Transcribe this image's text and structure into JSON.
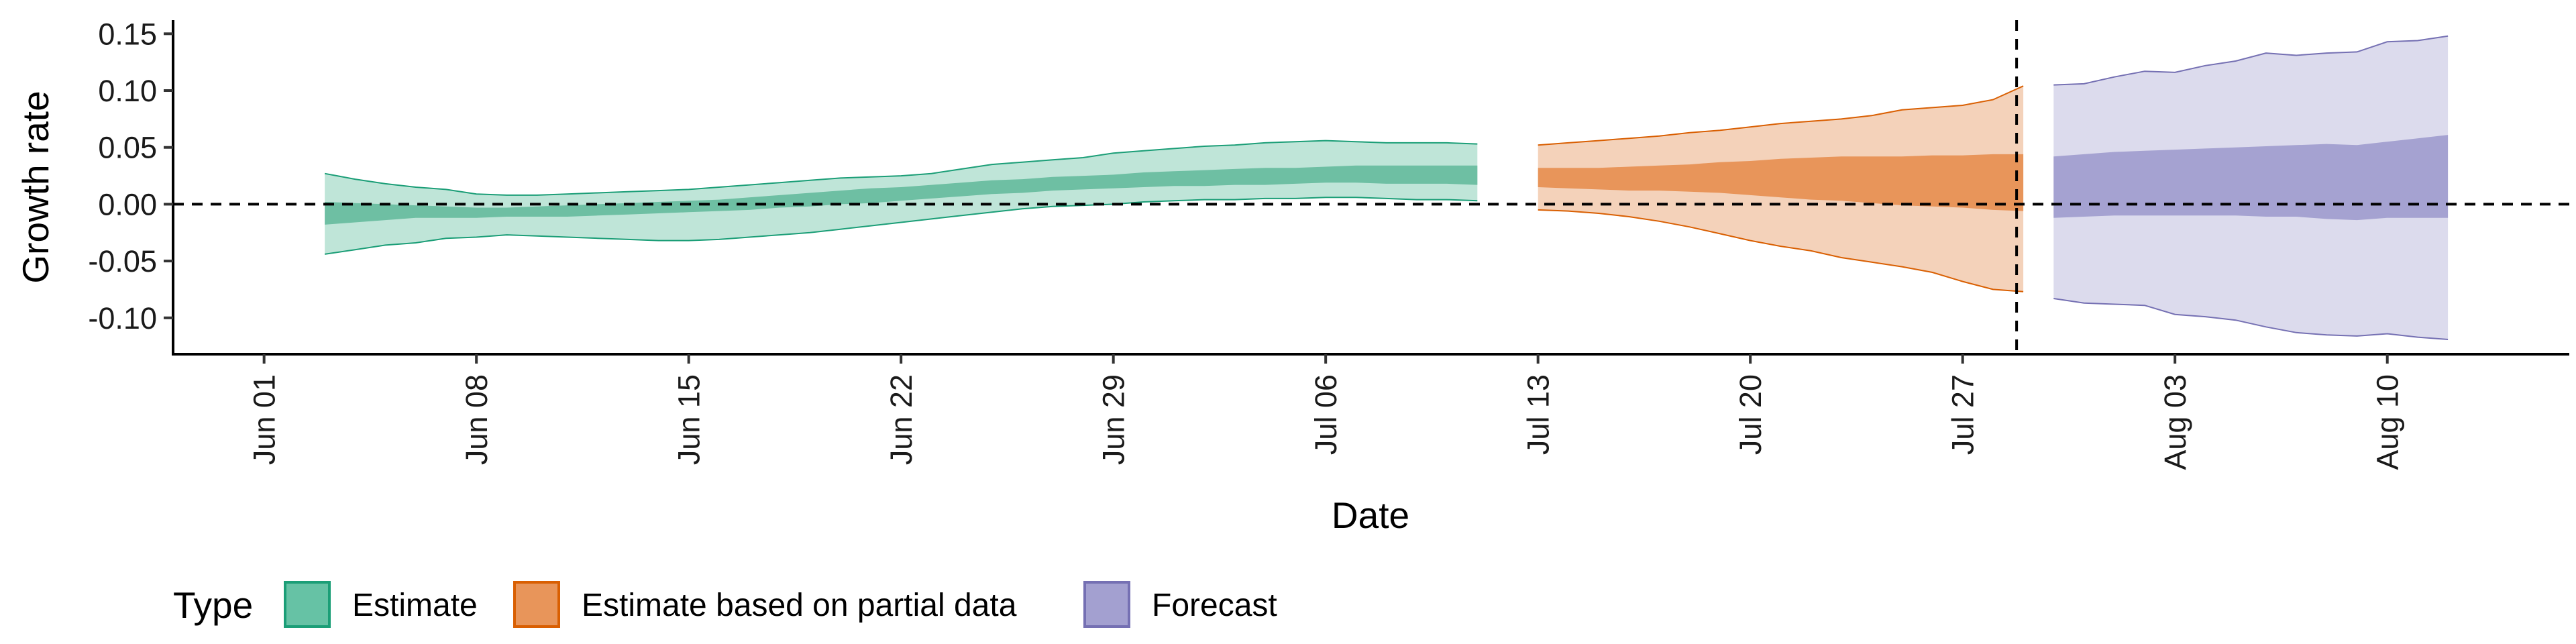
{
  "chart_data": {
    "type": "area",
    "xlabel": "Date",
    "ylabel": "Growth rate",
    "xlim": [
      "2020-05-29",
      "2020-08-16"
    ],
    "ylim": [
      -0.132,
      0.162
    ],
    "yticks": [
      0.15,
      0.1,
      0.05,
      0.0,
      -0.05,
      -0.1
    ],
    "ytick_labels": [
      "0.15",
      "0.10",
      "0.05",
      "0.00",
      "-0.05",
      "-0.10"
    ],
    "xticks": [
      "2020-06-01",
      "2020-06-08",
      "2020-06-15",
      "2020-06-22",
      "2020-06-29",
      "2020-07-06",
      "2020-07-13",
      "2020-07-20",
      "2020-07-27",
      "2020-08-03",
      "2020-08-10"
    ],
    "xtick_labels": [
      "Jun 01",
      "Jun 08",
      "Jun 15",
      "Jun 22",
      "Jun 29",
      "Jul 06",
      "Jul 13",
      "Jul 20",
      "Jul 27",
      "Aug 03",
      "Aug 10"
    ],
    "reference_lines": {
      "horizontal_y": 0,
      "vertical_x": "2020-07-29"
    },
    "grid": false,
    "legend": {
      "title": "Type",
      "position": "bottom-left",
      "entries": [
        {
          "label": "Estimate",
          "fill": "#66c2a5",
          "stroke": "#1b9e77"
        },
        {
          "label": "Estimate based on partial data",
          "fill": "#e8955a",
          "stroke": "#d95f02"
        },
        {
          "label": "Forecast",
          "fill": "#a3a0d0",
          "stroke": "#7570b3"
        }
      ]
    },
    "series": [
      {
        "name": "Estimate",
        "colors": {
          "inner": "#6ebfa3",
          "outer": "#bfe5d8",
          "line": "#1b9e77"
        },
        "x": [
          "2020-06-03",
          "2020-06-04",
          "2020-06-05",
          "2020-06-06",
          "2020-06-07",
          "2020-06-08",
          "2020-06-09",
          "2020-06-10",
          "2020-06-11",
          "2020-06-12",
          "2020-06-13",
          "2020-06-14",
          "2020-06-15",
          "2020-06-16",
          "2020-06-17",
          "2020-06-18",
          "2020-06-19",
          "2020-06-20",
          "2020-06-21",
          "2020-06-22",
          "2020-06-23",
          "2020-06-24",
          "2020-06-25",
          "2020-06-26",
          "2020-06-27",
          "2020-06-28",
          "2020-06-29",
          "2020-06-30",
          "2020-07-01",
          "2020-07-02",
          "2020-07-03",
          "2020-07-04",
          "2020-07-05",
          "2020-07-06",
          "2020-07-07",
          "2020-07-08",
          "2020-07-09",
          "2020-07-10",
          "2020-07-11"
        ],
        "lower_90": [
          -0.044,
          -0.04,
          -0.036,
          -0.034,
          -0.03,
          -0.029,
          -0.027,
          -0.028,
          -0.029,
          -0.03,
          -0.031,
          -0.032,
          -0.032,
          -0.031,
          -0.029,
          -0.027,
          -0.025,
          -0.022,
          -0.019,
          -0.016,
          -0.013,
          -0.01,
          -0.007,
          -0.004,
          -0.002,
          -0.001,
          0.0,
          0.002,
          0.003,
          0.004,
          0.004,
          0.005,
          0.005,
          0.006,
          0.006,
          0.005,
          0.004,
          0.004,
          0.003
        ],
        "lower_50": [
          -0.018,
          -0.016,
          -0.014,
          -0.012,
          -0.012,
          -0.012,
          -0.011,
          -0.011,
          -0.011,
          -0.01,
          -0.009,
          -0.008,
          -0.007,
          -0.006,
          -0.005,
          -0.003,
          -0.002,
          0.0,
          0.001,
          0.003,
          0.005,
          0.007,
          0.009,
          0.01,
          0.012,
          0.013,
          0.014,
          0.015,
          0.016,
          0.016,
          0.017,
          0.017,
          0.018,
          0.019,
          0.019,
          0.018,
          0.018,
          0.018,
          0.017
        ],
        "upper_50": [
          0.002,
          0.001,
          0.0,
          -0.001,
          -0.002,
          -0.003,
          -0.003,
          -0.002,
          -0.001,
          0.0,
          0.001,
          0.002,
          0.003,
          0.004,
          0.006,
          0.008,
          0.01,
          0.012,
          0.014,
          0.015,
          0.017,
          0.019,
          0.021,
          0.022,
          0.024,
          0.025,
          0.026,
          0.028,
          0.029,
          0.03,
          0.031,
          0.032,
          0.032,
          0.033,
          0.034,
          0.034,
          0.034,
          0.034,
          0.034
        ],
        "upper_90": [
          0.027,
          0.022,
          0.018,
          0.015,
          0.013,
          0.009,
          0.008,
          0.008,
          0.009,
          0.01,
          0.011,
          0.012,
          0.013,
          0.015,
          0.017,
          0.019,
          0.021,
          0.023,
          0.024,
          0.025,
          0.027,
          0.031,
          0.035,
          0.037,
          0.039,
          0.041,
          0.045,
          0.047,
          0.049,
          0.051,
          0.052,
          0.054,
          0.055,
          0.056,
          0.055,
          0.054,
          0.054,
          0.054,
          0.053
        ]
      },
      {
        "name": "Estimate based on partial data",
        "colors": {
          "inner": "#e8955a",
          "outer": "#f4d2ba",
          "line": "#d95f02"
        },
        "x": [
          "2020-07-13",
          "2020-07-14",
          "2020-07-15",
          "2020-07-16",
          "2020-07-17",
          "2020-07-18",
          "2020-07-19",
          "2020-07-20",
          "2020-07-21",
          "2020-07-22",
          "2020-07-23",
          "2020-07-24",
          "2020-07-25",
          "2020-07-26",
          "2020-07-27",
          "2020-07-28",
          "2020-07-29"
        ],
        "lower_90": [
          -0.005,
          -0.006,
          -0.008,
          -0.011,
          -0.015,
          -0.02,
          -0.026,
          -0.032,
          -0.037,
          -0.041,
          -0.047,
          -0.051,
          -0.055,
          -0.06,
          -0.068,
          -0.075,
          -0.077
        ],
        "lower_50": [
          0.015,
          0.014,
          0.013,
          0.012,
          0.012,
          0.011,
          0.01,
          0.008,
          0.006,
          0.004,
          0.003,
          0.001,
          -0.001,
          -0.002,
          -0.003,
          -0.005,
          -0.006
        ],
        "upper_50": [
          0.032,
          0.032,
          0.032,
          0.033,
          0.034,
          0.035,
          0.037,
          0.038,
          0.04,
          0.041,
          0.042,
          0.042,
          0.042,
          0.043,
          0.043,
          0.044,
          0.044
        ],
        "upper_90": [
          0.052,
          0.054,
          0.056,
          0.058,
          0.06,
          0.063,
          0.065,
          0.068,
          0.071,
          0.073,
          0.075,
          0.078,
          0.083,
          0.085,
          0.087,
          0.092,
          0.104
        ]
      },
      {
        "name": "Forecast",
        "colors": {
          "inner": "#a5a2d1",
          "outer": "#dcdbed",
          "line": "#7570b3"
        },
        "x": [
          "2020-07-30",
          "2020-07-31",
          "2020-08-01",
          "2020-08-02",
          "2020-08-03",
          "2020-08-04",
          "2020-08-05",
          "2020-08-06",
          "2020-08-07",
          "2020-08-08",
          "2020-08-09",
          "2020-08-10",
          "2020-08-11",
          "2020-08-12"
        ],
        "lower_90": [
          -0.083,
          -0.087,
          -0.088,
          -0.089,
          -0.097,
          -0.099,
          -0.102,
          -0.108,
          -0.113,
          -0.115,
          -0.116,
          -0.114,
          -0.117,
          -0.119
        ],
        "lower_50": [
          -0.012,
          -0.011,
          -0.01,
          -0.01,
          -0.01,
          -0.01,
          -0.01,
          -0.011,
          -0.011,
          -0.013,
          -0.014,
          -0.012,
          -0.012,
          -0.012
        ],
        "upper_50": [
          0.042,
          0.044,
          0.046,
          0.047,
          0.048,
          0.049,
          0.05,
          0.051,
          0.052,
          0.053,
          0.052,
          0.055,
          0.058,
          0.061
        ],
        "upper_90": [
          0.105,
          0.106,
          0.112,
          0.117,
          0.116,
          0.122,
          0.126,
          0.133,
          0.131,
          0.133,
          0.134,
          0.143,
          0.144,
          0.148
        ]
      }
    ]
  }
}
